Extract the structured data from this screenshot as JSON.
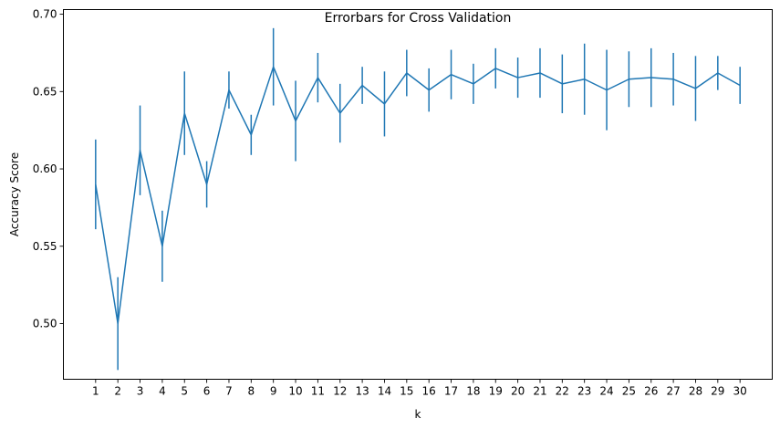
{
  "chart_data": {
    "type": "line",
    "title": "Errorbars for Cross Validation",
    "xlabel": "k",
    "ylabel": "Accuracy Score",
    "x": [
      1,
      2,
      3,
      4,
      5,
      6,
      7,
      8,
      9,
      10,
      11,
      12,
      13,
      14,
      15,
      16,
      17,
      18,
      19,
      20,
      21,
      22,
      23,
      24,
      25,
      26,
      27,
      28,
      29,
      30
    ],
    "series": [
      {
        "values": [
          0.59,
          0.5,
          0.612,
          0.55,
          0.636,
          0.59,
          0.651,
          0.622,
          0.666,
          0.631,
          0.659,
          0.636,
          0.654,
          0.642,
          0.662,
          0.651,
          0.661,
          0.655,
          0.665,
          0.659,
          0.662,
          0.655,
          0.658,
          0.651,
          0.658,
          0.659,
          0.658,
          0.652,
          0.662,
          0.654
        ],
        "errors": [
          0.029,
          0.03,
          0.029,
          0.023,
          0.027,
          0.015,
          0.012,
          0.013,
          0.025,
          0.026,
          0.016,
          0.019,
          0.012,
          0.021,
          0.015,
          0.014,
          0.016,
          0.013,
          0.013,
          0.013,
          0.016,
          0.019,
          0.023,
          0.026,
          0.018,
          0.019,
          0.017,
          0.021,
          0.011,
          0.012
        ],
        "color": "#1f77b4"
      }
    ],
    "xlim": [
      -0.45,
      31.45
    ],
    "ylim": [
      0.464,
      0.703
    ],
    "yticks": [
      0.5,
      0.55,
      0.6,
      0.65,
      0.7
    ],
    "ytick_labels": [
      "0.50",
      "0.55",
      "0.60",
      "0.65",
      "0.70"
    ],
    "xtick_labels": [
      "1",
      "2",
      "3",
      "4",
      "5",
      "6",
      "7",
      "8",
      "9",
      "10",
      "11",
      "12",
      "13",
      "14",
      "15",
      "16",
      "17",
      "18",
      "19",
      "20",
      "21",
      "22",
      "23",
      "24",
      "25",
      "26",
      "27",
      "28",
      "29",
      "30"
    ],
    "grid": false,
    "errorbars": true
  }
}
